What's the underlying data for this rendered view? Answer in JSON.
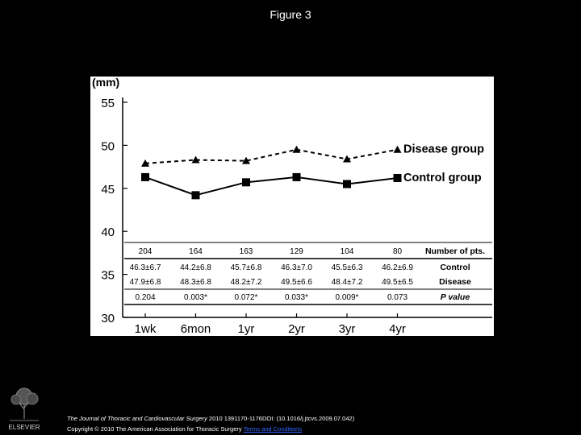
{
  "page": {
    "title": "Figure 3"
  },
  "chart_data": {
    "type": "line",
    "unit_label": "(mm)",
    "categories": [
      "1wk",
      "6mon",
      "1yr",
      "2yr",
      "3yr",
      "4yr"
    ],
    "ylim": [
      30,
      55
    ],
    "yticks": [
      "55",
      "50",
      "45",
      "40",
      "35",
      "30"
    ],
    "ytick_values": [
      55,
      50,
      45,
      40,
      35,
      30
    ],
    "series": [
      {
        "name": "Disease group",
        "marker": "triangle",
        "style": "dashed",
        "values": [
          47.9,
          48.3,
          48.2,
          49.5,
          48.4,
          49.5
        ]
      },
      {
        "name": "Control group",
        "marker": "square",
        "style": "solid",
        "values": [
          46.3,
          44.2,
          45.7,
          46.3,
          45.5,
          46.2
        ]
      }
    ],
    "table": {
      "rows": [
        {
          "label": "Number of pts.",
          "bold": true,
          "italic": false,
          "cells": [
            "204",
            "164",
            "163",
            "129",
            "104",
            "80"
          ]
        },
        {
          "label": "Control",
          "bold": true,
          "italic": false,
          "cells": [
            "46.3±6.7",
            "44.2±6.8",
            "45.7±6.8",
            "46.3±7.0",
            "45.5±6.3",
            "46.2±6.9"
          ]
        },
        {
          "label": "Disease",
          "bold": true,
          "italic": false,
          "cells": [
            "47.9±6.8",
            "48.3±6.8",
            "48.2±7.2",
            "49.5±6.6",
            "48.4±7.2",
            "49.5±6.5"
          ]
        },
        {
          "label": "P value",
          "bold": true,
          "italic": true,
          "cells": [
            "0.204",
            "0.003*",
            "0.072*",
            "0.033*",
            "0.009*",
            "0.073"
          ]
        }
      ]
    }
  },
  "footer": {
    "journal": "The Journal of Thoracic and Cardiovascular Surgery",
    "citation": " 2010 1391170-1176DOI: (10.1016/j.jtcvs.2009.07.042)",
    "copyright": "Copyright © 2010 The American Association for Thoracic Surgery ",
    "terms_link": "Terms and Conditions"
  },
  "logo": {
    "text": "ELSEVIER"
  }
}
